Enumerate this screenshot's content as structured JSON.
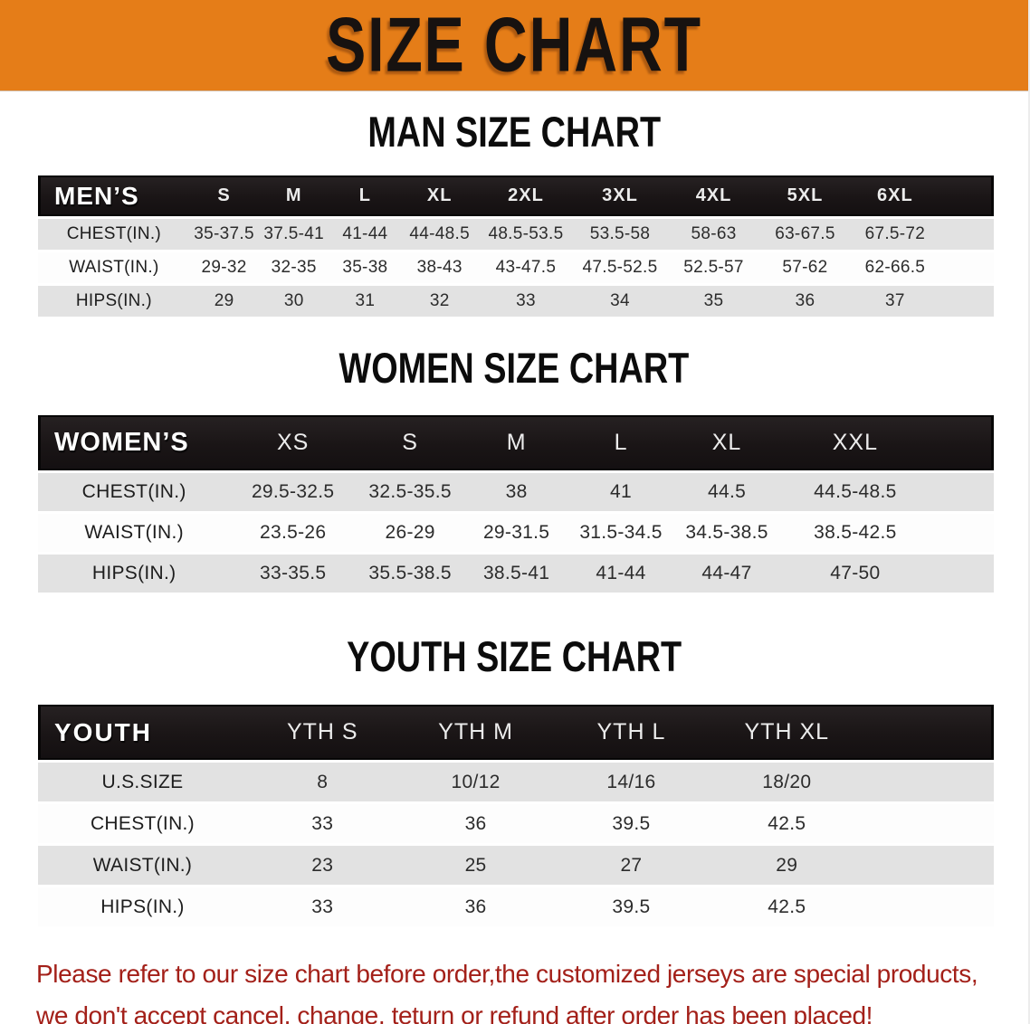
{
  "banner": {
    "title": "SIZE CHART",
    "bg_color": "#e57d18",
    "text_color": "#171210"
  },
  "sections": {
    "men_title": "MAN SIZE CHART",
    "women_title": "WOMEN SIZE CHART",
    "youth_title": "YOUTH SIZE CHART"
  },
  "tables": {
    "men": {
      "label": "MEN’S",
      "sizes": [
        "S",
        "M",
        "L",
        "XL",
        "2XL",
        "3XL",
        "4XL",
        "5XL",
        "6XL"
      ],
      "rows": [
        {
          "label": "CHEST(IN.)",
          "values": [
            "35-37.5",
            "37.5-41",
            "41-44",
            "44-48.5",
            "48.5-53.5",
            "53.5-58",
            "58-63",
            "63-67.5",
            "67.5-72"
          ]
        },
        {
          "label": "WAIST(IN.)",
          "values": [
            "29-32",
            "32-35",
            "35-38",
            "38-43",
            "43-47.5",
            "47.5-52.5",
            "52.5-57",
            "57-62",
            "62-66.5"
          ]
        },
        {
          "label": "HIPS(IN.)",
          "values": [
            "29",
            "30",
            "31",
            "32",
            "33",
            "34",
            "35",
            "36",
            "37"
          ]
        }
      ]
    },
    "women": {
      "label": "WOMEN’S",
      "sizes": [
        "XS",
        "S",
        "M",
        "L",
        "XL",
        "XXL"
      ],
      "rows": [
        {
          "label": "CHEST(IN.)",
          "values": [
            "29.5-32.5",
            "32.5-35.5",
            "38",
            "41",
            "44.5",
            "44.5-48.5"
          ]
        },
        {
          "label": "WAIST(IN.)",
          "values": [
            "23.5-26",
            "26-29",
            "29-31.5",
            "31.5-34.5",
            "34.5-38.5",
            "38.5-42.5"
          ]
        },
        {
          "label": "HIPS(IN.)",
          "values": [
            "33-35.5",
            "35.5-38.5",
            "38.5-41",
            "41-44",
            "44-47",
            "47-50"
          ]
        }
      ]
    },
    "youth": {
      "label": "YOUTH",
      "sizes": [
        "YTH S",
        "YTH M",
        "YTH L",
        "YTH XL"
      ],
      "rows": [
        {
          "label": "U.S.SIZE",
          "values": [
            "8",
            "10/12",
            "14/16",
            "18/20"
          ]
        },
        {
          "label": "CHEST(IN.)",
          "values": [
            "33",
            "36",
            "39.5",
            "42.5"
          ]
        },
        {
          "label": "WAIST(IN.)",
          "values": [
            "23",
            "25",
            "27",
            "29"
          ]
        },
        {
          "label": "HIPS(IN.)",
          "values": [
            "33",
            "36",
            "39.5",
            "42.5"
          ]
        }
      ]
    }
  },
  "footer": {
    "line1": "Please refer to our size chart before order,the customized jerseys are special products,",
    "line2": "we don't accept cancel, change, teturn or refund after order has been placed!",
    "text_color": "#a32019"
  },
  "colors": {
    "banner_orange": "#e57d18",
    "header_bar_black": "#1a1516",
    "row_stripe_grey": "#e2e2e2",
    "row_white": "#fdfdfd"
  }
}
